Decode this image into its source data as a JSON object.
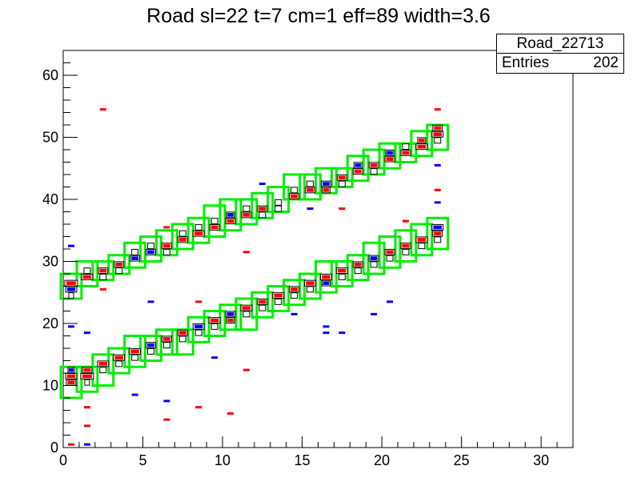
{
  "chart_data": {
    "type": "heatmap",
    "title": "Road sl=22 t=7 cm=1 eff=89 width=3.6",
    "xlabel": "",
    "ylabel": "",
    "xlim": [
      0,
      32
    ],
    "ylim": [
      0,
      64
    ],
    "x_ticks": [
      0,
      5,
      10,
      15,
      20,
      25,
      30
    ],
    "y_ticks": [
      0,
      10,
      20,
      30,
      40,
      50,
      60
    ],
    "grid": false,
    "stats": {
      "name": "Road_22713",
      "entries_label": "Entries",
      "entries": "202"
    },
    "colors": {
      "box": "#000000",
      "red": "#ff0000",
      "blue": "#0000ff",
      "road": "#00ee00"
    },
    "road_boxes": [
      {
        "layer": 0,
        "y": [
          8,
          13
        ]
      },
      {
        "layer": 1,
        "y": [
          9,
          13
        ]
      },
      {
        "layer": 2,
        "y": [
          10,
          15
        ]
      },
      {
        "layer": 3,
        "y": [
          12,
          16
        ]
      },
      {
        "layer": 4,
        "y": [
          13,
          18
        ]
      },
      {
        "layer": 5,
        "y": [
          14,
          18
        ]
      },
      {
        "layer": 6,
        "y": [
          15,
          19
        ]
      },
      {
        "layer": 7,
        "y": [
          15,
          19
        ]
      },
      {
        "layer": 8,
        "y": [
          17,
          21
        ]
      },
      {
        "layer": 9,
        "y": [
          18,
          22
        ]
      },
      {
        "layer": 10,
        "y": [
          19,
          23
        ]
      },
      {
        "layer": 11,
        "y": [
          19,
          24
        ]
      },
      {
        "layer": 12,
        "y": [
          21,
          25
        ]
      },
      {
        "layer": 13,
        "y": [
          22,
          26
        ]
      },
      {
        "layer": 14,
        "y": [
          23,
          27
        ]
      },
      {
        "layer": 15,
        "y": [
          24,
          28
        ]
      },
      {
        "layer": 16,
        "y": [
          25,
          30
        ]
      },
      {
        "layer": 17,
        "y": [
          26,
          30
        ]
      },
      {
        "layer": 18,
        "y": [
          27,
          31
        ]
      },
      {
        "layer": 19,
        "y": [
          28,
          33
        ]
      },
      {
        "layer": 20,
        "y": [
          29,
          34
        ]
      },
      {
        "layer": 21,
        "y": [
          30,
          35
        ]
      },
      {
        "layer": 22,
        "y": [
          31,
          36
        ]
      },
      {
        "layer": 23,
        "y": [
          32,
          37
        ]
      },
      {
        "layer": 0,
        "y": [
          24,
          28
        ]
      },
      {
        "layer": 1,
        "y": [
          26,
          30
        ]
      },
      {
        "layer": 2,
        "y": [
          27,
          30
        ]
      },
      {
        "layer": 3,
        "y": [
          28,
          31
        ]
      },
      {
        "layer": 4,
        "y": [
          29,
          33
        ]
      },
      {
        "layer": 5,
        "y": [
          30,
          34
        ]
      },
      {
        "layer": 6,
        "y": [
          31,
          35
        ]
      },
      {
        "layer": 7,
        "y": [
          32,
          36
        ]
      },
      {
        "layer": 8,
        "y": [
          33,
          37
        ]
      },
      {
        "layer": 9,
        "y": [
          34,
          39
        ]
      },
      {
        "layer": 10,
        "y": [
          35,
          40
        ]
      },
      {
        "layer": 11,
        "y": [
          36,
          40
        ]
      },
      {
        "layer": 12,
        "y": [
          37,
          41
        ]
      },
      {
        "layer": 13,
        "y": [
          38,
          42
        ]
      },
      {
        "layer": 14,
        "y": [
          40,
          44
        ]
      },
      {
        "layer": 15,
        "y": [
          40,
          44
        ]
      },
      {
        "layer": 16,
        "y": [
          41,
          45
        ]
      },
      {
        "layer": 17,
        "y": [
          42,
          45
        ]
      },
      {
        "layer": 18,
        "y": [
          43,
          47
        ]
      },
      {
        "layer": 19,
        "y": [
          44,
          48
        ]
      },
      {
        "layer": 20,
        "y": [
          45,
          49
        ]
      },
      {
        "layer": 21,
        "y": [
          46,
          49
        ]
      },
      {
        "layer": 22,
        "y": [
          47,
          51
        ]
      },
      {
        "layer": 23,
        "y": [
          48,
          52
        ]
      }
    ],
    "hit_bins": [
      {
        "x": 0.5,
        "y": 10.5,
        "c": "red",
        "w": 0.6
      },
      {
        "x": 0.5,
        "y": 11.5,
        "c": "red",
        "w": 0.7
      },
      {
        "x": 0.5,
        "y": 12.5,
        "c": "blue",
        "w": 0.4
      },
      {
        "x": 1.5,
        "y": 11.5,
        "c": "red",
        "w": 0.8
      },
      {
        "x": 1.5,
        "y": 12.5,
        "c": "red",
        "w": 0.6
      },
      {
        "x": 1.5,
        "y": 10.5,
        "c": "black",
        "w": 0.3
      },
      {
        "x": 2.5,
        "y": 13.5,
        "c": "red",
        "w": 0.7
      },
      {
        "x": 2.5,
        "y": 12.5,
        "c": "black",
        "w": 0.4
      },
      {
        "x": 3.5,
        "y": 14.5,
        "c": "red",
        "w": 0.7
      },
      {
        "x": 3.5,
        "y": 13.5,
        "c": "black",
        "w": 0.4
      },
      {
        "x": 4.5,
        "y": 15.5,
        "c": "red",
        "w": 0.7
      },
      {
        "x": 4.5,
        "y": 14.5,
        "c": "black",
        "w": 0.4
      },
      {
        "x": 5.5,
        "y": 16.5,
        "c": "blue",
        "w": 0.6
      },
      {
        "x": 5.5,
        "y": 15.5,
        "c": "black",
        "w": 0.4
      },
      {
        "x": 6.5,
        "y": 17.5,
        "c": "red",
        "w": 0.6
      },
      {
        "x": 6.5,
        "y": 16.5,
        "c": "black",
        "w": 0.4
      },
      {
        "x": 7.5,
        "y": 18.5,
        "c": "red",
        "w": 0.6
      },
      {
        "x": 7.5,
        "y": 17.5,
        "c": "black",
        "w": 0.4
      },
      {
        "x": 8.5,
        "y": 19.5,
        "c": "blue",
        "w": 0.7
      },
      {
        "x": 8.5,
        "y": 18.5,
        "c": "black",
        "w": 0.4
      },
      {
        "x": 9.5,
        "y": 20.5,
        "c": "red",
        "w": 0.7
      },
      {
        "x": 9.5,
        "y": 19.5,
        "c": "black",
        "w": 0.4
      },
      {
        "x": 10.5,
        "y": 21.5,
        "c": "blue",
        "w": 0.6
      },
      {
        "x": 10.5,
        "y": 20.5,
        "c": "red",
        "w": 0.5
      },
      {
        "x": 11.5,
        "y": 22.5,
        "c": "red",
        "w": 0.7
      },
      {
        "x": 11.5,
        "y": 21.5,
        "c": "black",
        "w": 0.4
      },
      {
        "x": 12.5,
        "y": 23.5,
        "c": "red",
        "w": 0.6
      },
      {
        "x": 12.5,
        "y": 22.5,
        "c": "black",
        "w": 0.4
      },
      {
        "x": 13.5,
        "y": 24.5,
        "c": "red",
        "w": 0.7
      },
      {
        "x": 13.5,
        "y": 23.5,
        "c": "black",
        "w": 0.4
      },
      {
        "x": 14.5,
        "y": 25.5,
        "c": "red",
        "w": 0.6
      },
      {
        "x": 14.5,
        "y": 24.5,
        "c": "black",
        "w": 0.4
      },
      {
        "x": 15.5,
        "y": 26.5,
        "c": "red",
        "w": 0.7
      },
      {
        "x": 15.5,
        "y": 25.5,
        "c": "black",
        "w": 0.4
      },
      {
        "x": 16.5,
        "y": 27.5,
        "c": "red",
        "w": 0.7
      },
      {
        "x": 16.5,
        "y": 26.5,
        "c": "blue",
        "w": 0.5
      },
      {
        "x": 17.5,
        "y": 28.5,
        "c": "red",
        "w": 0.7
      },
      {
        "x": 17.5,
        "y": 27.5,
        "c": "black",
        "w": 0.4
      },
      {
        "x": 18.5,
        "y": 29.5,
        "c": "red",
        "w": 0.6
      },
      {
        "x": 18.5,
        "y": 28.5,
        "c": "black",
        "w": 0.4
      },
      {
        "x": 19.5,
        "y": 30.5,
        "c": "blue",
        "w": 0.6
      },
      {
        "x": 19.5,
        "y": 29.5,
        "c": "black",
        "w": 0.4
      },
      {
        "x": 20.5,
        "y": 31.5,
        "c": "red",
        "w": 0.6
      },
      {
        "x": 20.5,
        "y": 30.5,
        "c": "black",
        "w": 0.4
      },
      {
        "x": 21.5,
        "y": 32.5,
        "c": "red",
        "w": 0.6
      },
      {
        "x": 21.5,
        "y": 31.5,
        "c": "black",
        "w": 0.4
      },
      {
        "x": 22.5,
        "y": 33.5,
        "c": "red",
        "w": 0.7
      },
      {
        "x": 22.5,
        "y": 32.5,
        "c": "black",
        "w": 0.4
      },
      {
        "x": 23.5,
        "y": 34.5,
        "c": "red",
        "w": 0.6
      },
      {
        "x": 23.5,
        "y": 35.5,
        "c": "blue",
        "w": 0.7
      },
      {
        "x": 23.5,
        "y": 33.5,
        "c": "black",
        "w": 0.4
      },
      {
        "x": 0.5,
        "y": 25.5,
        "c": "blue",
        "w": 0.7
      },
      {
        "x": 0.5,
        "y": 26.5,
        "c": "red",
        "w": 0.8
      },
      {
        "x": 0.5,
        "y": 24.5,
        "c": "black",
        "w": 0.3
      },
      {
        "x": 1.5,
        "y": 27.5,
        "c": "red",
        "w": 0.7
      },
      {
        "x": 1.5,
        "y": 28.5,
        "c": "black",
        "w": 0.4
      },
      {
        "x": 2.5,
        "y": 28.5,
        "c": "red",
        "w": 0.6
      },
      {
        "x": 2.5,
        "y": 27.5,
        "c": "black",
        "w": 0.4
      },
      {
        "x": 3.5,
        "y": 29.5,
        "c": "red",
        "w": 0.6
      },
      {
        "x": 3.5,
        "y": 28.5,
        "c": "black",
        "w": 0.4
      },
      {
        "x": 4.5,
        "y": 30.5,
        "c": "blue",
        "w": 0.6
      },
      {
        "x": 4.5,
        "y": 31.5,
        "c": "black",
        "w": 0.4
      },
      {
        "x": 5.5,
        "y": 31.5,
        "c": "blue",
        "w": 0.6
      },
      {
        "x": 5.5,
        "y": 32.5,
        "c": "black",
        "w": 0.4
      },
      {
        "x": 6.5,
        "y": 32.5,
        "c": "red",
        "w": 0.6
      },
      {
        "x": 6.5,
        "y": 31.5,
        "c": "black",
        "w": 0.4
      },
      {
        "x": 7.5,
        "y": 33.5,
        "c": "red",
        "w": 0.6
      },
      {
        "x": 7.5,
        "y": 34.5,
        "c": "black",
        "w": 0.4
      },
      {
        "x": 8.5,
        "y": 34.5,
        "c": "red",
        "w": 0.7
      },
      {
        "x": 8.5,
        "y": 35.5,
        "c": "black",
        "w": 0.4
      },
      {
        "x": 9.5,
        "y": 35.5,
        "c": "red",
        "w": 0.6
      },
      {
        "x": 9.5,
        "y": 36.5,
        "c": "black",
        "w": 0.4
      },
      {
        "x": 10.5,
        "y": 36.5,
        "c": "red",
        "w": 0.6
      },
      {
        "x": 10.5,
        "y": 37.5,
        "c": "blue",
        "w": 0.5
      },
      {
        "x": 11.5,
        "y": 37.5,
        "c": "red",
        "w": 0.6
      },
      {
        "x": 11.5,
        "y": 38.5,
        "c": "black",
        "w": 0.4
      },
      {
        "x": 12.5,
        "y": 38.5,
        "c": "red",
        "w": 0.6
      },
      {
        "x": 12.5,
        "y": 37.5,
        "c": "black",
        "w": 0.4
      },
      {
        "x": 13.5,
        "y": 39.5,
        "c": "black",
        "w": 0.4
      },
      {
        "x": 13.5,
        "y": 38.5,
        "c": "black",
        "w": 0.4
      },
      {
        "x": 14.5,
        "y": 40.5,
        "c": "red",
        "w": 0.6
      },
      {
        "x": 14.5,
        "y": 41.5,
        "c": "black",
        "w": 0.4
      },
      {
        "x": 15.5,
        "y": 41.5,
        "c": "red",
        "w": 0.6
      },
      {
        "x": 15.5,
        "y": 42.5,
        "c": "black",
        "w": 0.4
      },
      {
        "x": 16.5,
        "y": 42.5,
        "c": "blue",
        "w": 0.6
      },
      {
        "x": 16.5,
        "y": 41.5,
        "c": "red",
        "w": 0.5
      },
      {
        "x": 17.5,
        "y": 43.5,
        "c": "red",
        "w": 0.6
      },
      {
        "x": 17.5,
        "y": 42.5,
        "c": "black",
        "w": 0.4
      },
      {
        "x": 18.5,
        "y": 44.5,
        "c": "red",
        "w": 0.6
      },
      {
        "x": 18.5,
        "y": 45.5,
        "c": "blue",
        "w": 0.5
      },
      {
        "x": 19.5,
        "y": 45.5,
        "c": "red",
        "w": 0.6
      },
      {
        "x": 19.5,
        "y": 44.5,
        "c": "black",
        "w": 0.4
      },
      {
        "x": 20.5,
        "y": 46.5,
        "c": "red",
        "w": 0.6
      },
      {
        "x": 20.5,
        "y": 47.5,
        "c": "blue",
        "w": 0.5
      },
      {
        "x": 21.5,
        "y": 47.5,
        "c": "red",
        "w": 0.6
      },
      {
        "x": 21.5,
        "y": 48.5,
        "c": "black",
        "w": 0.4
      },
      {
        "x": 22.5,
        "y": 48.5,
        "c": "red",
        "w": 0.7
      },
      {
        "x": 22.5,
        "y": 49.5,
        "c": "red",
        "w": 0.5
      },
      {
        "x": 23.5,
        "y": 50.5,
        "c": "red",
        "w": 0.7
      },
      {
        "x": 23.5,
        "y": 51.5,
        "c": "red",
        "w": 0.6
      },
      {
        "x": 23.5,
        "y": 49.5,
        "c": "black",
        "w": 0.4
      }
    ],
    "noise_hits": [
      {
        "x": 0.5,
        "y": 0.5,
        "c": "red"
      },
      {
        "x": 1.5,
        "y": 0.5,
        "c": "blue"
      },
      {
        "x": 1.5,
        "y": 3.5,
        "c": "red"
      },
      {
        "x": 1.5,
        "y": 6.5,
        "c": "red"
      },
      {
        "x": 0.5,
        "y": 19.5,
        "c": "blue"
      },
      {
        "x": 1.5,
        "y": 18.5,
        "c": "blue"
      },
      {
        "x": 0.5,
        "y": 32.5,
        "c": "blue"
      },
      {
        "x": 2.5,
        "y": 54.5,
        "c": "red"
      },
      {
        "x": 2.5,
        "y": 25.5,
        "c": "red"
      },
      {
        "x": 4.5,
        "y": 8.5,
        "c": "blue"
      },
      {
        "x": 5.5,
        "y": 23.5,
        "c": "blue"
      },
      {
        "x": 6.5,
        "y": 4.5,
        "c": "red"
      },
      {
        "x": 6.5,
        "y": 7.5,
        "c": "blue"
      },
      {
        "x": 6.5,
        "y": 35.5,
        "c": "red"
      },
      {
        "x": 8.5,
        "y": 6.5,
        "c": "red"
      },
      {
        "x": 8.5,
        "y": 23.5,
        "c": "red"
      },
      {
        "x": 9.5,
        "y": 14.5,
        "c": "blue"
      },
      {
        "x": 10.5,
        "y": 5.5,
        "c": "red"
      },
      {
        "x": 11.5,
        "y": 12.5,
        "c": "red"
      },
      {
        "x": 11.5,
        "y": 31.5,
        "c": "red"
      },
      {
        "x": 12.5,
        "y": 42.5,
        "c": "blue"
      },
      {
        "x": 14.5,
        "y": 21.5,
        "c": "blue"
      },
      {
        "x": 15.5,
        "y": 38.5,
        "c": "blue"
      },
      {
        "x": 16.5,
        "y": 19.5,
        "c": "blue"
      },
      {
        "x": 16.5,
        "y": 18.5,
        "c": "blue"
      },
      {
        "x": 17.5,
        "y": 18.5,
        "c": "blue"
      },
      {
        "x": 17.5,
        "y": 38.5,
        "c": "red"
      },
      {
        "x": 19.5,
        "y": 21.5,
        "c": "blue"
      },
      {
        "x": 20.5,
        "y": 23.5,
        "c": "blue"
      },
      {
        "x": 21.5,
        "y": 36.5,
        "c": "red"
      },
      {
        "x": 23.5,
        "y": 45.5,
        "c": "blue"
      },
      {
        "x": 23.5,
        "y": 39.5,
        "c": "blue"
      },
      {
        "x": 23.5,
        "y": 41.5,
        "c": "red"
      },
      {
        "x": 23.5,
        "y": 54.5,
        "c": "red"
      }
    ]
  }
}
